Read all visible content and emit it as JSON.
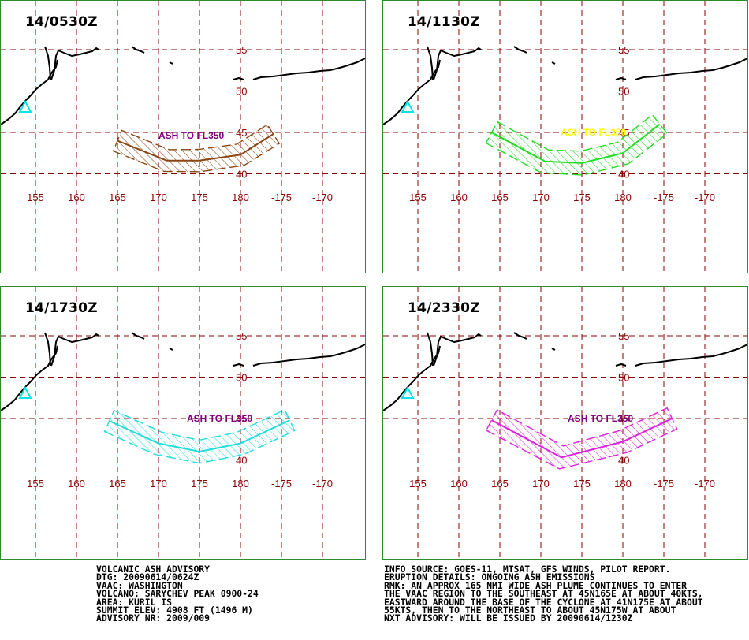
{
  "lon_labels": [
    "155",
    "160",
    "165",
    "170",
    "175",
    "180",
    "-175",
    "-170"
  ],
  "lat_labels": [
    "55",
    "50",
    "45",
    "40"
  ],
  "volcano_symbol": "triangle-volcano-icon",
  "colors": {
    "border": "#2e8b2e",
    "grid": "#8b0000",
    "coast": "#000000",
    "volcano": "#00e5e5",
    "label_text": "#800080"
  },
  "panels": [
    {
      "time": "14/0530Z",
      "label": "ASH TO FL350",
      "color": "#8b4513",
      "label_color": "#800080",
      "axis": [
        [
          165,
          44
        ],
        [
          171,
          41.6
        ],
        [
          175,
          41.6
        ],
        [
          180,
          42.3
        ],
        [
          184,
          44.8
        ]
      ],
      "half_width_deg": 1.35
    },
    {
      "time": "14/1130Z",
      "label": "ASH TO FL350",
      "color": "#22dd22",
      "label_color": "#ffff00",
      "axis": [
        [
          164,
          45
        ],
        [
          170.5,
          41.5
        ],
        [
          175,
          41.3
        ],
        [
          180,
          42.5
        ],
        [
          184.5,
          46
        ]
      ],
      "half_width_deg": 1.45
    },
    {
      "time": "14/1730Z",
      "label": "ASH TO FL350",
      "color": "#22dddd",
      "label_color": "#800080",
      "axis": [
        [
          164,
          44.7
        ],
        [
          170,
          42
        ],
        [
          175,
          41
        ],
        [
          180,
          42
        ],
        [
          186,
          44.8
        ]
      ],
      "half_width_deg": 1.4
    },
    {
      "time": "14/2330Z",
      "label": "ASH TO FL350",
      "color": "#dd22dd",
      "label_color": "#800080",
      "axis": [
        [
          164,
          44.8
        ],
        [
          172.5,
          40.3
        ],
        [
          180,
          42.2
        ],
        [
          186,
          45
        ]
      ],
      "half_width_deg": 1.4
    }
  ],
  "advisory_left": [
    "VOLCANIC ASH ADVISORY",
    "DTG: 20090614/0624Z",
    "VAAC: WASHINGTON",
    "VOLCANO: SARYCHEV PEAK 0900-24",
    "AREA: KURIL IS",
    "SUMMIT ELEV: 4908 FT (1496 M)",
    "ADVISORY NR: 2009/009"
  ],
  "advisory_right": [
    "INFO SOURCE: GOES-11, MTSAT, GFS WINDS, PILOT REPORT.",
    "ERUPTION DETAILS: ONGOING ASH EMISSIONS",
    "RMK: AN APPROX 165 NMI WIDE ASH PLUME CONTINUES TO ENTER",
    "THE VAAC REGION TO THE SOUTHEAST AT 45N165E AT ABOUT 40KTS,",
    "EASTWARD AROUND THE BASE OF THE CYCLONE AT 41N175E AT ABOUT",
    "55KTS, THEN TO THE NORTHEAST TO ABOUT 45N175W AT ABOUT",
    "NXT ADVISORY: WILL BE ISSUED BY 20090614/1230Z"
  ]
}
